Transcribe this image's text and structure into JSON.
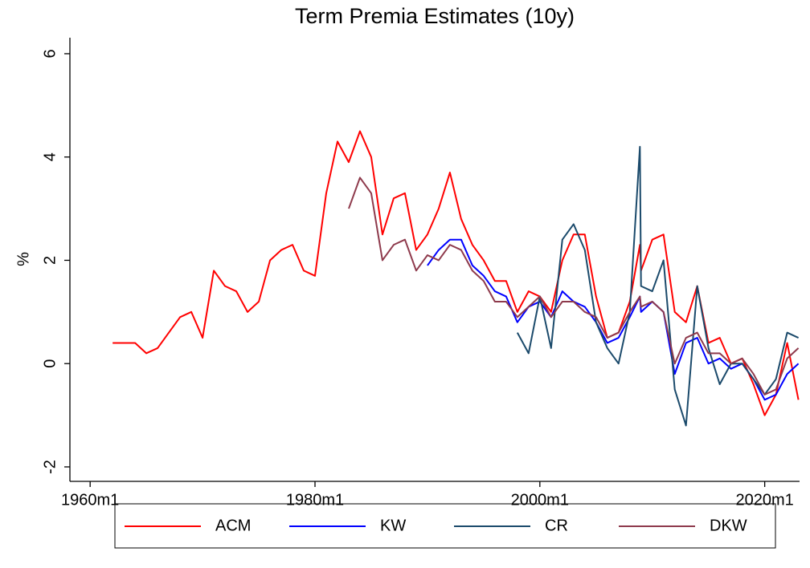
{
  "chart_data": {
    "type": "line",
    "title": "Term Premia Estimates (10y)",
    "y_label": "%",
    "x": [
      1962,
      1963,
      1964,
      1965,
      1966,
      1967,
      1968,
      1969,
      1970,
      1971,
      1972,
      1973,
      1974,
      1975,
      1976,
      1977,
      1978,
      1979,
      1980,
      1981,
      1982,
      1983,
      1984,
      1985,
      1986,
      1987,
      1988,
      1989,
      1990,
      1991,
      1992,
      1993,
      1994,
      1995,
      1996,
      1997,
      1998,
      1999,
      2000,
      2001,
      2002,
      2003,
      2004,
      2005,
      2006,
      2007,
      2008,
      2008.9,
      2009,
      2010,
      2011,
      2012,
      2013,
      2014,
      2015,
      2016,
      2017,
      2018,
      2019,
      2020,
      2021,
      2022,
      2023
    ],
    "series": [
      {
        "name": "ACM",
        "color": "#ff0000",
        "values": [
          0.4,
          0.4,
          0.4,
          0.2,
          0.3,
          0.6,
          0.9,
          1.0,
          0.5,
          1.8,
          1.5,
          1.4,
          1.0,
          1.2,
          2.0,
          2.2,
          2.3,
          1.8,
          1.7,
          3.3,
          4.3,
          3.9,
          4.5,
          4.0,
          2.5,
          3.2,
          3.3,
          2.2,
          2.5,
          3.0,
          3.7,
          2.8,
          2.3,
          2.0,
          1.6,
          1.6,
          1.0,
          1.4,
          1.3,
          1.0,
          2.0,
          2.5,
          2.5,
          1.3,
          0.5,
          0.6,
          1.2,
          2.3,
          1.8,
          2.4,
          2.5,
          1.0,
          0.8,
          1.5,
          0.4,
          0.5,
          0.0,
          0.1,
          -0.4,
          -1.0,
          -0.6,
          0.4,
          -0.7
        ]
      },
      {
        "name": "KW",
        "color": "#0000ff",
        "values": [
          null,
          null,
          null,
          null,
          null,
          null,
          null,
          null,
          null,
          null,
          null,
          null,
          null,
          null,
          null,
          null,
          null,
          null,
          null,
          null,
          null,
          null,
          null,
          null,
          null,
          null,
          null,
          null,
          1.9,
          2.2,
          2.4,
          2.4,
          1.9,
          1.7,
          1.4,
          1.3,
          0.8,
          1.1,
          1.2,
          0.9,
          1.4,
          1.2,
          1.1,
          0.8,
          0.4,
          0.5,
          0.9,
          1.3,
          1.0,
          1.2,
          1.0,
          -0.2,
          0.4,
          0.5,
          0.0,
          0.1,
          -0.1,
          0.0,
          -0.3,
          -0.7,
          -0.6,
          -0.2,
          0.0
        ]
      },
      {
        "name": "CR",
        "color": "#1b4a6b",
        "values": [
          null,
          null,
          null,
          null,
          null,
          null,
          null,
          null,
          null,
          null,
          null,
          null,
          null,
          null,
          null,
          null,
          null,
          null,
          null,
          null,
          null,
          null,
          null,
          null,
          null,
          null,
          null,
          null,
          null,
          null,
          null,
          null,
          null,
          null,
          null,
          null,
          0.6,
          0.2,
          1.3,
          0.3,
          2.4,
          2.7,
          2.2,
          0.8,
          0.3,
          0.0,
          1.0,
          4.2,
          1.5,
          1.4,
          2.0,
          -0.5,
          -1.2,
          1.5,
          0.3,
          -0.4,
          0.0,
          0.0,
          -0.3,
          -0.6,
          -0.3,
          0.6,
          0.5
        ]
      },
      {
        "name": "DKW",
        "color": "#8e3a4c",
        "values": [
          null,
          null,
          null,
          null,
          null,
          null,
          null,
          null,
          null,
          null,
          null,
          null,
          null,
          null,
          null,
          null,
          null,
          null,
          null,
          null,
          null,
          3.0,
          3.6,
          3.3,
          2.0,
          2.3,
          2.4,
          1.8,
          2.1,
          2.0,
          2.3,
          2.2,
          1.8,
          1.6,
          1.2,
          1.2,
          0.9,
          1.1,
          1.3,
          0.9,
          1.2,
          1.2,
          1.0,
          0.9,
          0.5,
          0.6,
          1.0,
          1.3,
          1.1,
          1.2,
          1.0,
          0.0,
          0.5,
          0.6,
          0.2,
          0.2,
          0.0,
          0.1,
          -0.2,
          -0.6,
          -0.5,
          0.1,
          0.3
        ]
      }
    ],
    "xlim": [
      1958.2,
      2023.1
    ],
    "xticks": [
      {
        "value": 1960,
        "label": "1960m1"
      },
      {
        "value": 1980,
        "label": "1980m1"
      },
      {
        "value": 2000,
        "label": "2000m1"
      },
      {
        "value": 2020,
        "label": "2020m1"
      }
    ],
    "ylim": [
      -2.28,
      6.31
    ],
    "yticks": [
      -2,
      0,
      2,
      4,
      6
    ],
    "grid": false,
    "legend": "bottom"
  }
}
